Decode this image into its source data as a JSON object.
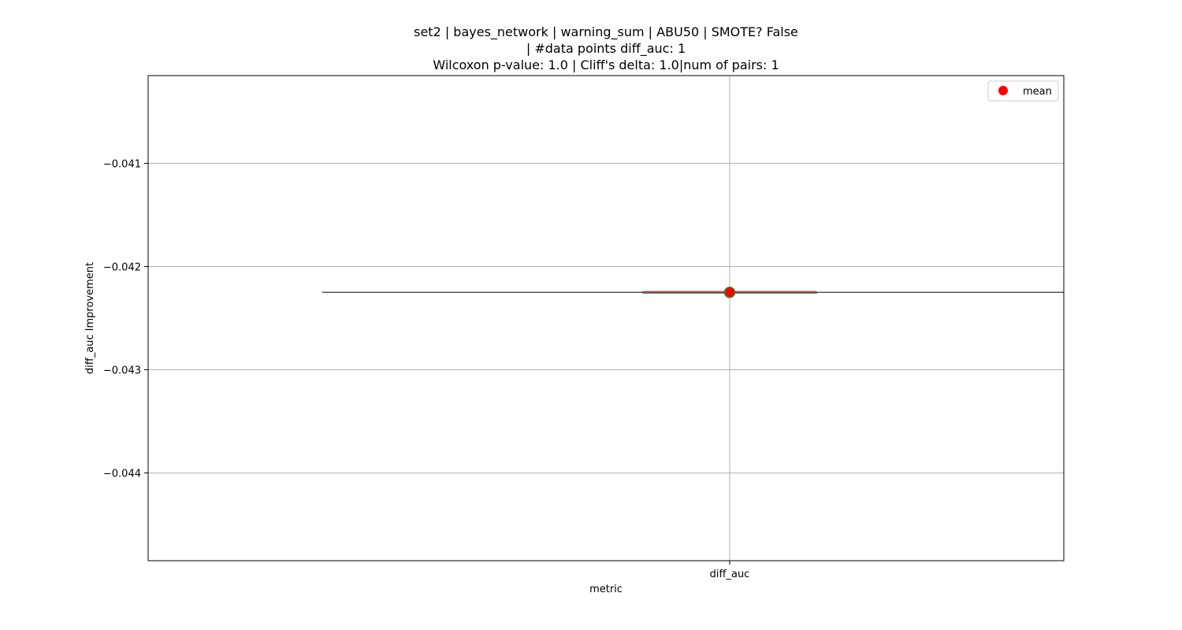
{
  "chart_data": {
    "type": "box",
    "title": [
      "set2 | bayes_network | warning_sum | ABU50 | SMOTE? False",
      "| #data points diff_auc: 1",
      "Wilcoxon p-value: 1.0 | Cliff's delta: 1.0|num of pairs: 1"
    ],
    "xlabel": "metric",
    "ylabel": "diff_auc Improvement",
    "categories": [
      "diff_auc"
    ],
    "ylim": [
      -0.04485,
      -0.04015
    ],
    "yticks": [
      -0.041,
      -0.042,
      -0.043,
      -0.044
    ],
    "ytick_labels": [
      "−0.041",
      "−0.042",
      "−0.043",
      "−0.044"
    ],
    "grid": true,
    "legend": {
      "placement": "top-right",
      "entries": [
        {
          "label": "mean",
          "color": "#ff0000",
          "marker": "circle"
        }
      ]
    },
    "series": [
      {
        "category": "diff_auc",
        "min": -0.04225,
        "q1": -0.04225,
        "median": -0.04225,
        "q3": -0.04225,
        "max": -0.04225,
        "mean": -0.04225
      }
    ],
    "colors": {
      "mean_fill": "#ff0000",
      "mean_edge": "#2a8a2a",
      "median_line": "#b5533c",
      "whisker": "#555555",
      "grid": "#b0b0b0",
      "axes": "#000000"
    }
  }
}
